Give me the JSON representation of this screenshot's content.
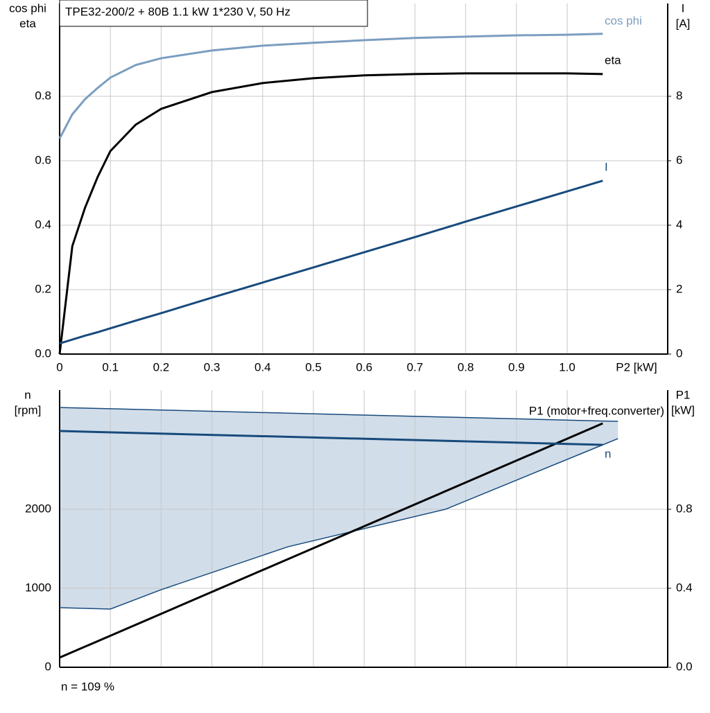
{
  "chart_data": [
    {
      "type": "line",
      "title": "TPE32-200/2 + 80B   1.1 kW   1*230 V, 50 Hz",
      "ylabel": [
        "cos phi",
        "eta"
      ],
      "y2label": [
        "I",
        "[A]"
      ],
      "xlabel": "P2 [kW]",
      "x": [
        0,
        0.025,
        0.05,
        0.075,
        0.1,
        0.15,
        0.2,
        0.3,
        0.4,
        0.5,
        0.6,
        0.7,
        0.8,
        0.9,
        1.0,
        1.07
      ],
      "xlim": [
        0,
        1.198
      ],
      "xticks": [
        {
          "value": 0,
          "label": "0"
        },
        0.1,
        0.2,
        0.3,
        0.4,
        0.5,
        0.6,
        0.7,
        0.8,
        0.9,
        {
          "value": 1,
          "label": "1.0"
        }
      ],
      "ylim": [
        0,
        1.088
      ],
      "yticks": [
        {
          "value": 0,
          "label": "0.0"
        },
        0.2,
        0.4,
        0.6,
        0.8
      ],
      "y2lim": [
        0,
        10.88
      ],
      "y2ticks": [
        0,
        2,
        4,
        6,
        8
      ],
      "grid": true,
      "series": [
        {
          "name": "cos phi",
          "color": "#7b9dc0",
          "values": [
            0.669,
            0.744,
            0.791,
            0.826,
            0.858,
            0.897,
            0.918,
            0.942,
            0.957,
            0.966,
            0.974,
            0.981,
            0.985,
            0.989,
            0.991,
            0.994
          ]
        },
        {
          "name": "eta",
          "color": "#000000",
          "values": [
            0,
            0.335,
            0.454,
            0.55,
            0.63,
            0.712,
            0.761,
            0.813,
            0.841,
            0.856,
            0.865,
            0.869,
            0.871,
            0.871,
            0.871,
            0.869
          ]
        },
        {
          "name": "I",
          "color": "#174a7c",
          "axis": "y2",
          "values": [
            0.33,
            0.45,
            0.57,
            0.68,
            0.8,
            1.04,
            1.27,
            1.75,
            2.22,
            2.69,
            3.16,
            3.63,
            4.11,
            4.58,
            5.05,
            5.38
          ]
        }
      ]
    },
    {
      "type": "line",
      "ylabel": [
        "n",
        "[rpm]"
      ],
      "y2label": [
        "P1",
        "[kW]"
      ],
      "x": [
        0,
        1.07
      ],
      "xlim": [
        0,
        1.198
      ],
      "ylim": [
        0,
        3509
      ],
      "yticks": [
        0,
        1000,
        2000
      ],
      "y2lim": [
        0,
        1.4035
      ],
      "y2ticks": [
        {
          "value": 0,
          "label": "0.0"
        },
        0.4,
        0.8
      ],
      "grid": true,
      "band": {
        "color": "#d1dde9",
        "edge": "#174a7c",
        "x": [
          0,
          0.1,
          0.2,
          0.45,
          0.76,
          1.07,
          1.1
        ],
        "lower": [
          754,
          737,
          982,
          1526,
          2000,
          2816,
          2895
        ],
        "upper": [
          3289,
          3273,
          3257,
          3217,
          3168,
          3118,
          3114
        ]
      },
      "series": [
        {
          "name": "P1 (motor+freq.converter)",
          "color": "#000000",
          "axis": "y2",
          "values": [
            0.049,
            1.235
          ]
        },
        {
          "name": "n",
          "color": "#174a7c",
          "values": [
            2991,
            2816
          ]
        }
      ],
      "annotation": "n = 109 %"
    }
  ]
}
